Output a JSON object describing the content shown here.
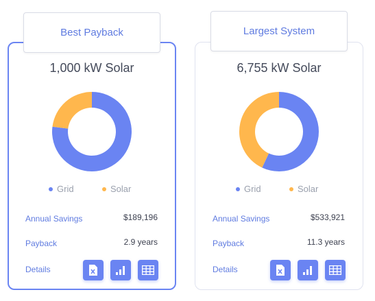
{
  "cards": [
    {
      "tab_label": "Best Payback",
      "system_title": "1,000 kW Solar",
      "chart_data": {
        "type": "pie",
        "categories": [
          "Grid",
          "Solar"
        ],
        "values": [
          77,
          23
        ],
        "colors": [
          "#6a84f2",
          "#ffb74d"
        ]
      },
      "legend": [
        {
          "label": "Grid",
          "color": "#6a84f2"
        },
        {
          "label": "Solar",
          "color": "#ffb74d"
        }
      ],
      "annual_savings_label": "Annual Savings",
      "annual_savings_value": "$189,196",
      "payback_label": "Payback",
      "payback_value": "2.9 years",
      "details_label": "Details",
      "buttons": [
        "excel-export-icon",
        "bar-chart-icon",
        "table-icon"
      ]
    },
    {
      "tab_label": "Largest System",
      "system_title": "6,755 kW Solar",
      "chart_data": {
        "type": "pie",
        "categories": [
          "Grid",
          "Solar"
        ],
        "values": [
          57,
          43
        ],
        "colors": [
          "#6a84f2",
          "#ffb74d"
        ]
      },
      "legend": [
        {
          "label": "Grid",
          "color": "#6a84f2"
        },
        {
          "label": "Solar",
          "color": "#ffb74d"
        }
      ],
      "annual_savings_label": "Annual Savings",
      "annual_savings_value": "$533,921",
      "payback_label": "Payback",
      "payback_value": "11.3 years",
      "details_label": "Details",
      "buttons": [
        "excel-export-icon",
        "bar-chart-icon",
        "table-icon"
      ]
    }
  ]
}
